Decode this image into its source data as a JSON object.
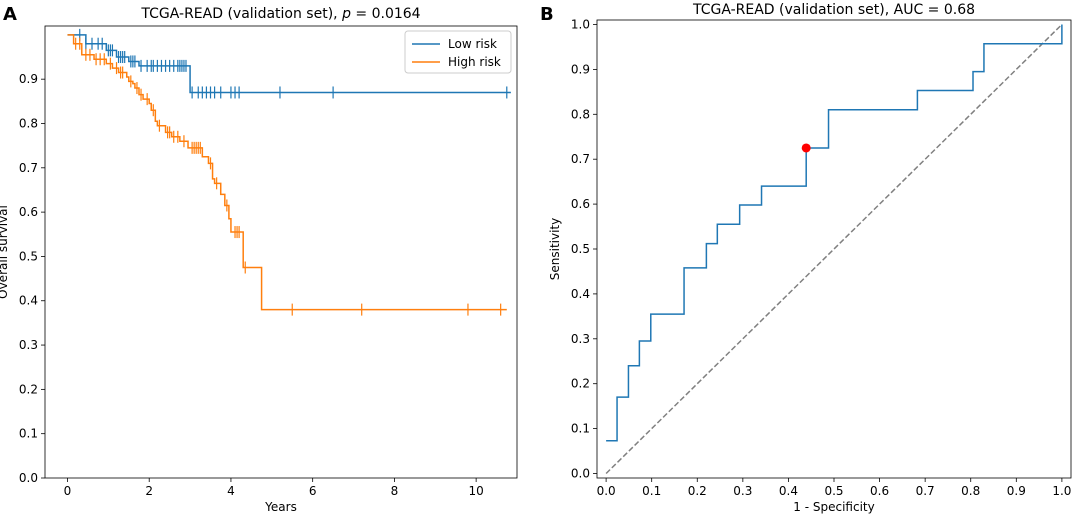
{
  "colors": {
    "low_risk": "#1f77b4",
    "high_risk": "#ff7f0e",
    "roc": "#1f77b4",
    "diagonal": "#808080",
    "optimal_point": "#ff0000",
    "axes": "#000000"
  },
  "chart_data": [
    {
      "type": "line",
      "subtype": "kaplan-meier",
      "panel_label": "A",
      "title_prefix": "TCGA-READ (validation set), ",
      "title_p_symbol": "p",
      "title_p_value": " = 0.0164",
      "xlabel": "Years",
      "ylabel": "Overall survival",
      "xlim": [
        -0.55,
        11.0
      ],
      "ylim": [
        0.0,
        1.02
      ],
      "xticks": [
        0,
        2,
        4,
        6,
        8,
        10
      ],
      "xtick_labels": [
        "0",
        "2",
        "4",
        "6",
        "8",
        "10"
      ],
      "yticks": [
        0.0,
        0.1,
        0.2,
        0.3,
        0.4,
        0.5,
        0.6,
        0.7,
        0.8,
        0.9
      ],
      "ytick_labels": [
        "0.0",
        "0.1",
        "0.2",
        "0.3",
        "0.4",
        "0.5",
        "0.6",
        "0.7",
        "0.8",
        "0.9"
      ],
      "legend_position": "top-right",
      "series": [
        {
          "name": "Low risk",
          "color_key": "low_risk",
          "steps": [
            [
              0,
              1.0
            ],
            [
              0.45,
              0.98
            ],
            [
              0.95,
              0.965
            ],
            [
              1.2,
              0.95
            ],
            [
              1.5,
              0.94
            ],
            [
              1.75,
              0.93
            ],
            [
              3.0,
              0.87
            ],
            [
              10.85,
              0.87
            ]
          ],
          "censor_times": [
            0.3,
            0.45,
            0.6,
            0.75,
            0.85,
            1.0,
            1.05,
            1.1,
            1.25,
            1.3,
            1.35,
            1.4,
            1.55,
            1.6,
            1.65,
            1.8,
            1.95,
            2.05,
            2.1,
            2.2,
            2.3,
            2.4,
            2.5,
            2.6,
            2.7,
            2.75,
            2.8,
            2.85,
            2.9,
            3.05,
            3.2,
            3.3,
            3.4,
            3.5,
            3.6,
            3.75,
            4.0,
            4.1,
            4.2,
            5.2,
            6.5,
            10.75
          ]
        },
        {
          "name": "High risk",
          "color_key": "high_risk",
          "steps": [
            [
              0,
              1.0
            ],
            [
              0.15,
              0.98
            ],
            [
              0.35,
              0.955
            ],
            [
              0.65,
              0.945
            ],
            [
              0.95,
              0.935
            ],
            [
              1.1,
              0.925
            ],
            [
              1.25,
              0.915
            ],
            [
              1.45,
              0.905
            ],
            [
              1.5,
              0.895
            ],
            [
              1.6,
              0.89
            ],
            [
              1.65,
              0.88
            ],
            [
              1.75,
              0.865
            ],
            [
              1.85,
              0.855
            ],
            [
              2.0,
              0.845
            ],
            [
              2.05,
              0.83
            ],
            [
              2.15,
              0.805
            ],
            [
              2.2,
              0.795
            ],
            [
              2.4,
              0.78
            ],
            [
              2.55,
              0.77
            ],
            [
              2.75,
              0.76
            ],
            [
              2.95,
              0.745
            ],
            [
              3.3,
              0.725
            ],
            [
              3.45,
              0.71
            ],
            [
              3.55,
              0.675
            ],
            [
              3.6,
              0.665
            ],
            [
              3.75,
              0.64
            ],
            [
              3.85,
              0.615
            ],
            [
              3.95,
              0.585
            ],
            [
              4.0,
              0.555
            ],
            [
              4.3,
              0.475
            ],
            [
              4.75,
              0.38
            ],
            [
              10.75,
              0.38
            ]
          ],
          "censor_times": [
            0.2,
            0.3,
            0.45,
            0.55,
            0.7,
            0.8,
            0.9,
            1.05,
            1.2,
            1.3,
            1.35,
            1.55,
            1.7,
            1.8,
            1.95,
            2.1,
            2.25,
            2.45,
            2.5,
            2.6,
            2.7,
            2.85,
            3.05,
            3.1,
            3.15,
            3.2,
            3.25,
            3.5,
            3.65,
            3.9,
            4.1,
            4.15,
            4.2,
            4.35,
            5.5,
            7.2,
            9.8,
            10.6
          ]
        }
      ]
    },
    {
      "type": "line",
      "subtype": "roc",
      "panel_label": "B",
      "title": "TCGA-READ (validation set), AUC = 0.68",
      "xlabel": "1 - Specificity",
      "ylabel": "Sensitivity",
      "xlim": [
        -0.02,
        1.02
      ],
      "ylim": [
        -0.01,
        1.01
      ],
      "xticks": [
        0.0,
        0.1,
        0.2,
        0.3,
        0.4,
        0.5,
        0.6,
        0.7,
        0.8,
        0.9,
        1.0
      ],
      "xtick_labels": [
        "0.0",
        "0.1",
        "0.2",
        "0.3",
        "0.4",
        "0.5",
        "0.6",
        "0.7",
        "0.8",
        "0.9",
        "1.0"
      ],
      "yticks": [
        0.0,
        0.1,
        0.2,
        0.3,
        0.4,
        0.5,
        0.6,
        0.7,
        0.8,
        0.9,
        1.0
      ],
      "ytick_labels": [
        "0.0",
        "0.1",
        "0.2",
        "0.3",
        "0.4",
        "0.5",
        "0.6",
        "0.7",
        "0.8",
        "0.9",
        "1.0"
      ],
      "roc_points": [
        [
          0.0,
          0.073
        ],
        [
          0.024,
          0.073
        ],
        [
          0.024,
          0.17
        ],
        [
          0.049,
          0.17
        ],
        [
          0.049,
          0.24
        ],
        [
          0.073,
          0.24
        ],
        [
          0.073,
          0.295
        ],
        [
          0.098,
          0.295
        ],
        [
          0.098,
          0.355
        ],
        [
          0.171,
          0.355
        ],
        [
          0.171,
          0.458
        ],
        [
          0.22,
          0.458
        ],
        [
          0.22,
          0.512
        ],
        [
          0.244,
          0.512
        ],
        [
          0.244,
          0.555
        ],
        [
          0.293,
          0.555
        ],
        [
          0.293,
          0.598
        ],
        [
          0.341,
          0.598
        ],
        [
          0.341,
          0.64
        ],
        [
          0.439,
          0.64
        ],
        [
          0.439,
          0.725
        ],
        [
          0.488,
          0.725
        ],
        [
          0.488,
          0.81
        ],
        [
          0.683,
          0.81
        ],
        [
          0.683,
          0.853
        ],
        [
          0.805,
          0.853
        ],
        [
          0.805,
          0.895
        ],
        [
          0.829,
          0.895
        ],
        [
          0.829,
          0.957
        ],
        [
          1.0,
          0.957
        ],
        [
          1.0,
          1.0
        ]
      ],
      "diagonal": [
        [
          0.0,
          0.0
        ],
        [
          1.0,
          1.0
        ]
      ],
      "optimal_point": [
        0.439,
        0.725
      ]
    }
  ]
}
